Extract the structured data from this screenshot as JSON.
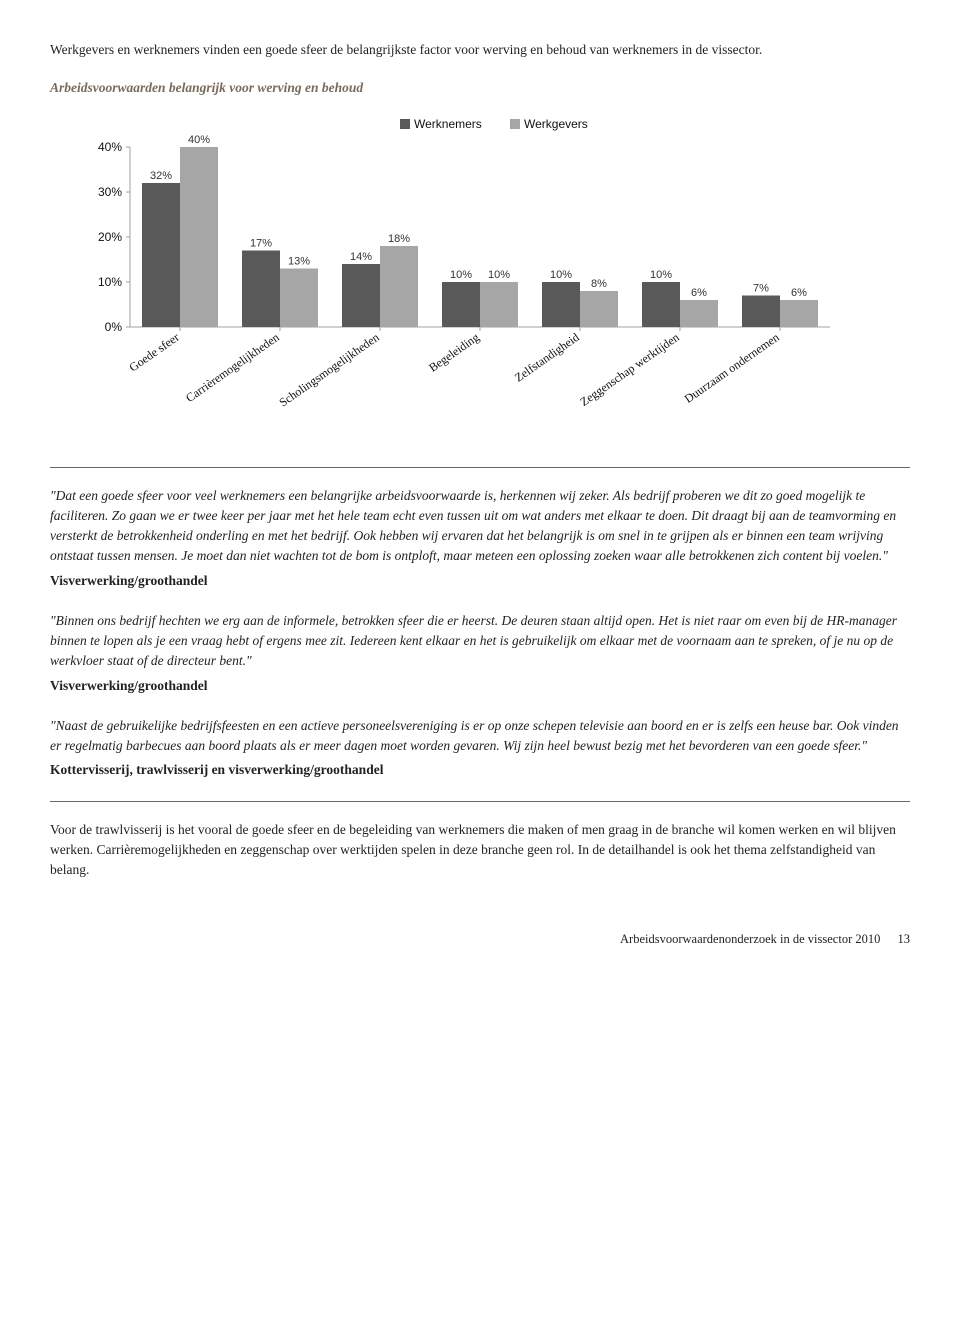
{
  "intro": "Werkgevers en werknemers vinden een goede sfeer de belangrijkste factor voor werving en behoud van werknemers in de vissector.",
  "chart": {
    "title": "Arbeidsvoorwaarden belangrijk voor werving en behoud",
    "type": "bar",
    "legend": {
      "series1": "Werknemers",
      "series2": "Werkgevers"
    },
    "colors": {
      "series1": "#595959",
      "series2": "#a6a6a6",
      "axis": "#a0a0a0",
      "text": "#333333",
      "background": "#ffffff"
    },
    "ylim": [
      0,
      40
    ],
    "ytick_step": 10,
    "yticks": [
      "0%",
      "10%",
      "20%",
      "30%",
      "40%"
    ],
    "categories": [
      "Goede sfeer",
      "Carrièremogelijkheden",
      "Scholingsmogelijkheden",
      "Begeleiding",
      "Zelfstandigheid",
      "Zeggenschap werktijden",
      "Duurzaam ondernemen"
    ],
    "series1_values": [
      32,
      17,
      14,
      10,
      10,
      10,
      7
    ],
    "series1_labels": [
      "32%",
      "17%",
      "14%",
      "10%",
      "10%",
      "10%",
      "7%"
    ],
    "series2_values": [
      40,
      13,
      18,
      10,
      8,
      6,
      6
    ],
    "series2_labels": [
      "40%",
      "13%",
      "18%",
      "10%",
      "8%",
      "6%",
      "6%"
    ],
    "label_fontsize": 11,
    "bar_width": 0.38
  },
  "quote1": {
    "text": "\"Dat een goede sfeer voor veel werknemers een belangrijke arbeidsvoorwaarde is, herkennen wij zeker. Als bedrijf proberen we dit zo goed mogelijk te faciliteren. Zo gaan we er twee keer per jaar met het hele team echt even tussen uit om wat anders met elkaar te doen. Dit draagt bij aan de teamvorming en versterkt de betrokkenheid onderling en met het bedrijf. Ook hebben wij ervaren dat het belangrijk is om snel in te grijpen als er binnen een team wrijving ontstaat tussen mensen. Je moet dan niet wachten tot de bom is ontploft, maar meteen een oplossing zoeken waar alle betrokkenen zich content bij voelen.\"",
    "source": "Visverwerking/groothandel"
  },
  "quote2": {
    "text": "\"Binnen ons bedrijf hechten we erg aan de informele, betrokken sfeer die er heerst. De deuren staan altijd open. Het is niet raar om even bij de HR-manager binnen te lopen als je een vraag hebt of ergens mee zit. Iedereen kent elkaar en het is gebruikelijk om elkaar met de voornaam aan te spreken, of je nu op de werkvloer staat of de directeur bent.\"",
    "source": "Visverwerking/groothandel"
  },
  "quote3": {
    "text": "\"Naast de gebruikelijke bedrijfsfeesten en een actieve personeelsvereniging is er op onze schepen televisie aan boord en er is zelfs een heuse bar. Ook vinden er regelmatig barbecues aan boord plaats als er meer dagen moet worden gevaren. Wij zijn heel bewust bezig met het bevorderen van een goede sfeer.\"",
    "source": "Kottervisserij, trawlvisserij en visverwerking/groothandel"
  },
  "after_para": "Voor de trawlvisserij is het vooral de goede sfeer en de begeleiding van werknemers die maken of men graag in de branche wil komen werken en wil blijven werken. Carrièremogelijkheden en zeggenschap over werktijden spelen in deze branche geen rol. In de detailhandel is ook het thema zelfstandigheid van belang.",
  "footer": {
    "title": "Arbeidsvoorwaardenonderzoek in de vissector 2010",
    "page": "13"
  }
}
